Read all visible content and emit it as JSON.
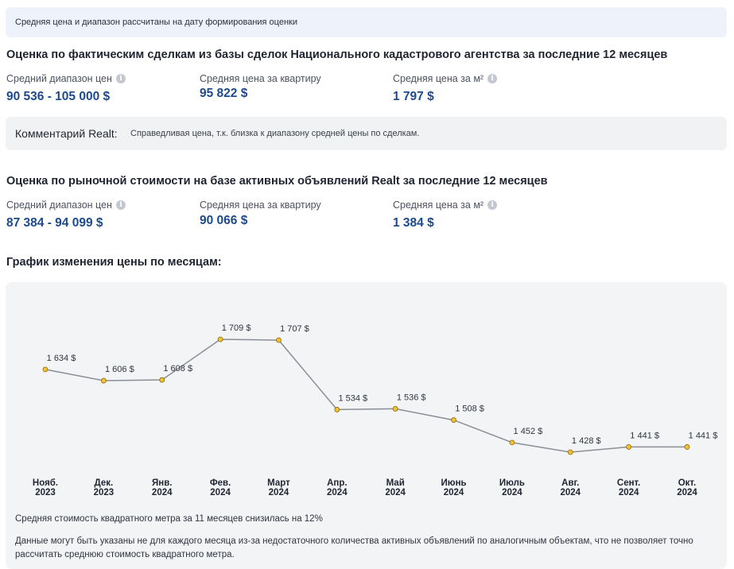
{
  "notice": {
    "text": "Средняя цена и диапазон рассчитаны на дату формирования оценки"
  },
  "deals": {
    "title": "Оценка по фактическим сделкам из базы сделок Национального кадастрового агентства за последние 12 месяцев",
    "avg_range_label": "Средний диапазон цен",
    "avg_range_value": "90 536 - 105 000 $",
    "avg_price_label": "Средняя цена за квартиру",
    "avg_price_value": "95 822 $",
    "avg_sqm_label": "Средняя цена за м²",
    "avg_sqm_value": "1 797 $"
  },
  "comment": {
    "title": "Комментарий Realt:",
    "text": "Справедливая цена, т.к. близка к диапазону средней цены по сделкам."
  },
  "market": {
    "title": "Оценка по рыночной стоимости на базе активных объявлений Realt за последние 12 месяцев",
    "avg_range_label": "Средний диапазон цен",
    "avg_range_value": "87 384 - 94 099 $",
    "avg_price_label": "Средняя цена за квартиру",
    "avg_price_value": "90 066 $",
    "avg_sqm_label": "Средняя цена за м²",
    "avg_sqm_value": "1 384 $"
  },
  "chart_section": {
    "title": "График изменения цены по месяцам:",
    "note1": "Средняя стоимость квадратного метра за 11 месяцев снизилась на 12%",
    "note2": "Данные могут быть указаны не для каждого месяца из-за недостаточного количества активных объявлений по аналогичным объектам, что не позволяет точно рассчитать среднюю стоимость квадратного метра."
  },
  "colors": {
    "accent_value": "#1d4a8c",
    "line": "#8a8e96",
    "point_fill": "#f2c230",
    "point_stroke": "#8a6a10"
  },
  "icons": {
    "info": "info-icon"
  },
  "chart_data": {
    "type": "line",
    "title": "",
    "xlabel": "",
    "ylabel": "",
    "grid": false,
    "categories": [
      [
        "Нояб.",
        "2023"
      ],
      [
        "Дек.",
        "2023"
      ],
      [
        "Янв.",
        "2024"
      ],
      [
        "Фев.",
        "2024"
      ],
      [
        "Март",
        "2024"
      ],
      [
        "Апр.",
        "2024"
      ],
      [
        "Май",
        "2024"
      ],
      [
        "Июнь",
        "2024"
      ],
      [
        "Июль",
        "2024"
      ],
      [
        "Авг.",
        "2024"
      ],
      [
        "Сент.",
        "2024"
      ],
      [
        "Окт.",
        "2024"
      ]
    ],
    "values": [
      1634,
      1606,
      1608,
      1709,
      1707,
      1534,
      1536,
      1508,
      1452,
      1428,
      1441,
      1441
    ],
    "value_labels": [
      "1 634 $",
      "1 606 $",
      "1 608 $",
      "1 709 $",
      "1 707 $",
      "1 534 $",
      "1 536 $",
      "1 508 $",
      "1 452 $",
      "1 428 $",
      "1 441 $",
      "1 441 $"
    ],
    "ylim": [
      1428,
      1709
    ]
  }
}
